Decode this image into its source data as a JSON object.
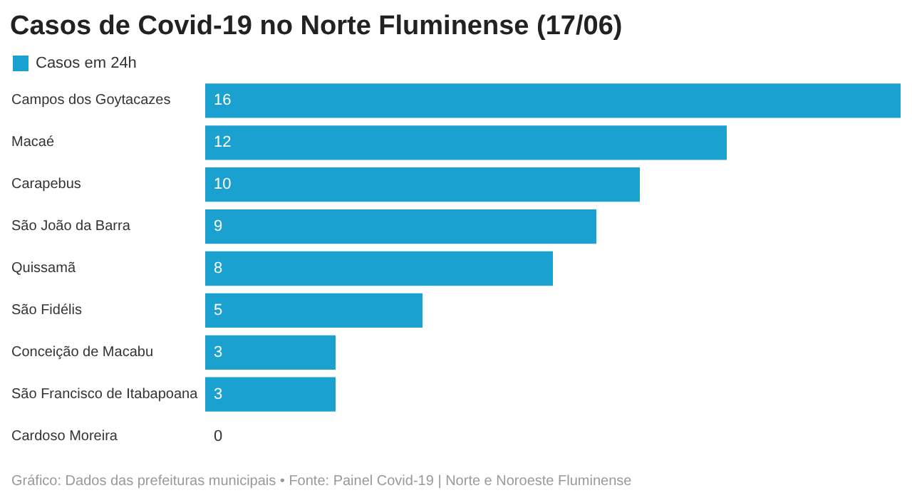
{
  "chart_data": {
    "type": "bar",
    "orientation": "horizontal",
    "title": "Casos de Covid-19 no Norte Fluminense (17/06)",
    "categories": [
      "Campos dos Goytacazes",
      "Macaé",
      "Carapebus",
      "São João da Barra",
      "Quissamã",
      "São Fidélis",
      "Conceição de Macabu",
      "São Francisco de Itabapoana",
      "Cardoso Moreira"
    ],
    "series": [
      {
        "name": "Casos em 24h",
        "color": "#1ba1cf",
        "values": [
          16,
          12,
          10,
          9,
          8,
          5,
          3,
          3,
          0
        ]
      }
    ],
    "data_labels": true,
    "legend": "top left",
    "annotations": [
      "Gráfico: Dados das prefeituras municipais • Fonte: Painel Covid-19 | Norte e Noroeste Fluminense"
    ]
  }
}
